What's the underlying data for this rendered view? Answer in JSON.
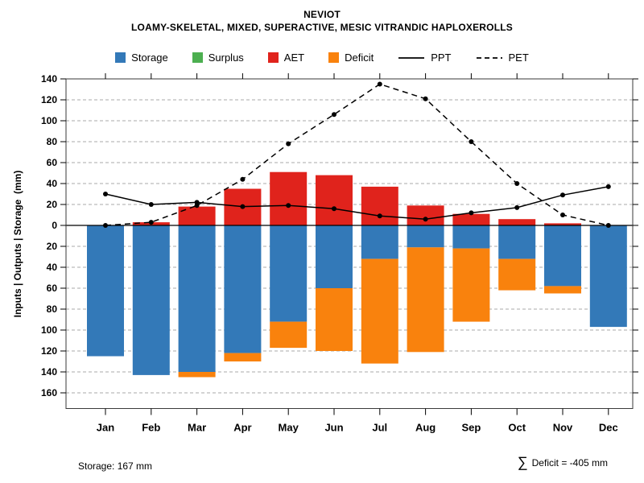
{
  "title": {
    "line1": "NEVIOT",
    "line2": "LOAMY-SKELETAL, MIXED, SUPERACTIVE, MESIC VITRANDIC HAPLOXEROLLS"
  },
  "legend": [
    {
      "label": "Storage",
      "type": "swatch",
      "color": "#3379b8"
    },
    {
      "label": "Surplus",
      "type": "swatch",
      "color": "#4caf50"
    },
    {
      "label": "AET",
      "type": "swatch",
      "color": "#e0231c"
    },
    {
      "label": "Deficit",
      "type": "swatch",
      "color": "#f9820d"
    },
    {
      "label": "PPT",
      "type": "line",
      "style": "solid",
      "color": "#000000"
    },
    {
      "label": "PET",
      "type": "line",
      "style": "dashed",
      "color": "#000000"
    }
  ],
  "chart_data": {
    "type": "bar",
    "title": "NEVIOT",
    "subtitle": "LOAMY-SKELETAL, MIXED, SUPERACTIVE, MESIC VITRANDIC HAPLOXEROLLS",
    "categories": [
      "Jan",
      "Feb",
      "Mar",
      "Apr",
      "May",
      "Jun",
      "Jul",
      "Aug",
      "Sep",
      "Oct",
      "Nov",
      "Dec"
    ],
    "ylabel": "Inputs | Outputs | Storage  (mm)",
    "yticks": [
      "140",
      "120",
      "100",
      "80",
      "60",
      "40",
      "20",
      "0",
      "20",
      "40",
      "60",
      "80",
      "100",
      "120",
      "140",
      "160"
    ],
    "ytick_step_mm": 20,
    "ylim": [
      -175,
      140
    ],
    "grid": "dashed-horizontal",
    "legend_position": "top",
    "series": [
      {
        "name": "AET",
        "direction": "up",
        "color": "#e0231c",
        "values": [
          0,
          3,
          18,
          35,
          51,
          48,
          37,
          19,
          11,
          6,
          2,
          0
        ]
      },
      {
        "name": "Surplus",
        "direction": "up",
        "color": "#4caf50",
        "values": [
          0,
          0,
          0,
          0,
          0,
          0,
          0,
          0,
          0,
          0,
          0,
          0
        ]
      },
      {
        "name": "Storage",
        "direction": "down",
        "color": "#3379b8",
        "values": [
          125,
          143,
          140,
          122,
          92,
          60,
          32,
          21,
          22,
          32,
          58,
          97
        ]
      },
      {
        "name": "Deficit",
        "direction": "down-stacked",
        "color": "#f9820d",
        "values": [
          0,
          0,
          5,
          8,
          25,
          60,
          100,
          100,
          70,
          30,
          7,
          0
        ]
      }
    ],
    "lines": [
      {
        "name": "PPT",
        "style": "solid",
        "color": "#000000",
        "values": [
          30,
          20,
          22,
          18,
          19,
          16,
          9,
          6,
          12,
          17,
          29,
          37
        ]
      },
      {
        "name": "PET",
        "style": "dashed",
        "color": "#000000",
        "values": [
          0,
          3,
          19,
          44,
          78,
          106,
          135,
          121,
          80,
          40,
          10,
          0
        ]
      }
    ]
  },
  "footer": {
    "storage": "Storage: 167 mm",
    "sigma": "∑",
    "deficit": "Deficit = -405 mm"
  }
}
